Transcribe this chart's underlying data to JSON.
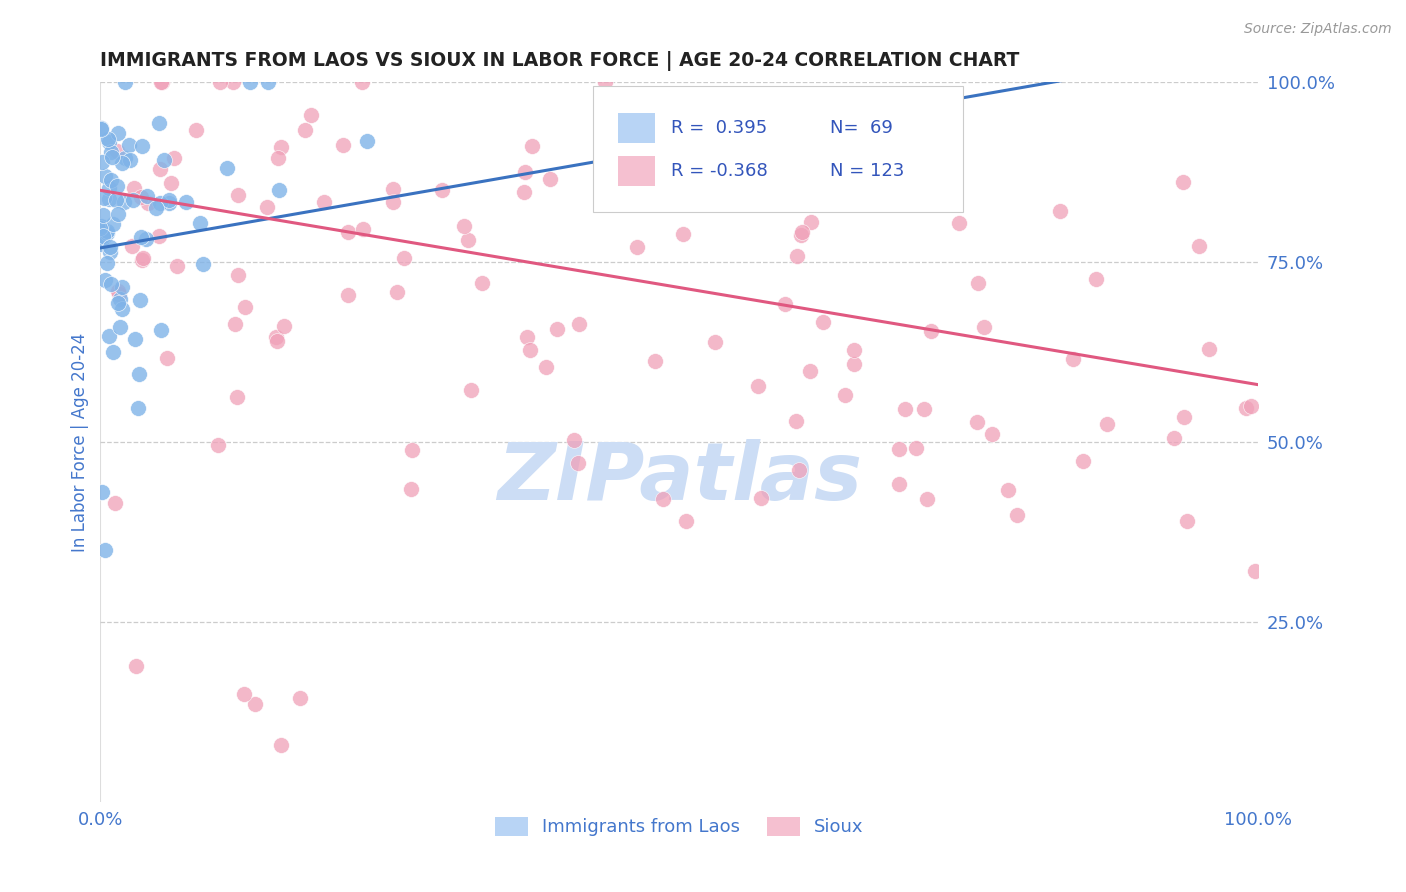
{
  "title": "IMMIGRANTS FROM LAOS VS SIOUX IN LABOR FORCE | AGE 20-24 CORRELATION CHART",
  "source_text": "Source: ZipAtlas.com",
  "ylabel": "In Labor Force | Age 20-24",
  "xlim": [
    0.0,
    1.0
  ],
  "ylim": [
    0.0,
    1.0
  ],
  "right_ytick_positions": [
    0.25,
    0.5,
    0.75,
    1.0
  ],
  "right_ytick_labels": [
    "25.0%",
    "50.0%",
    "75.0%",
    "100.0%"
  ],
  "laos_R": 0.395,
  "laos_N": 69,
  "sioux_R": -0.368,
  "sioux_N": 123,
  "laos_scatter_color": "#7fb3e8",
  "sioux_scatter_color": "#f0a0b8",
  "laos_legend_color": "#b8d4f5",
  "sioux_legend_color": "#f5c0d0",
  "laos_line_color": "#3a72c0",
  "sioux_line_color": "#e05880",
  "watermark_color": "#ccddf5",
  "background_color": "#ffffff",
  "grid_color": "#cccccc",
  "title_color": "#222222",
  "axis_label_color": "#4477cc",
  "legend_R_color": "#3355bb"
}
